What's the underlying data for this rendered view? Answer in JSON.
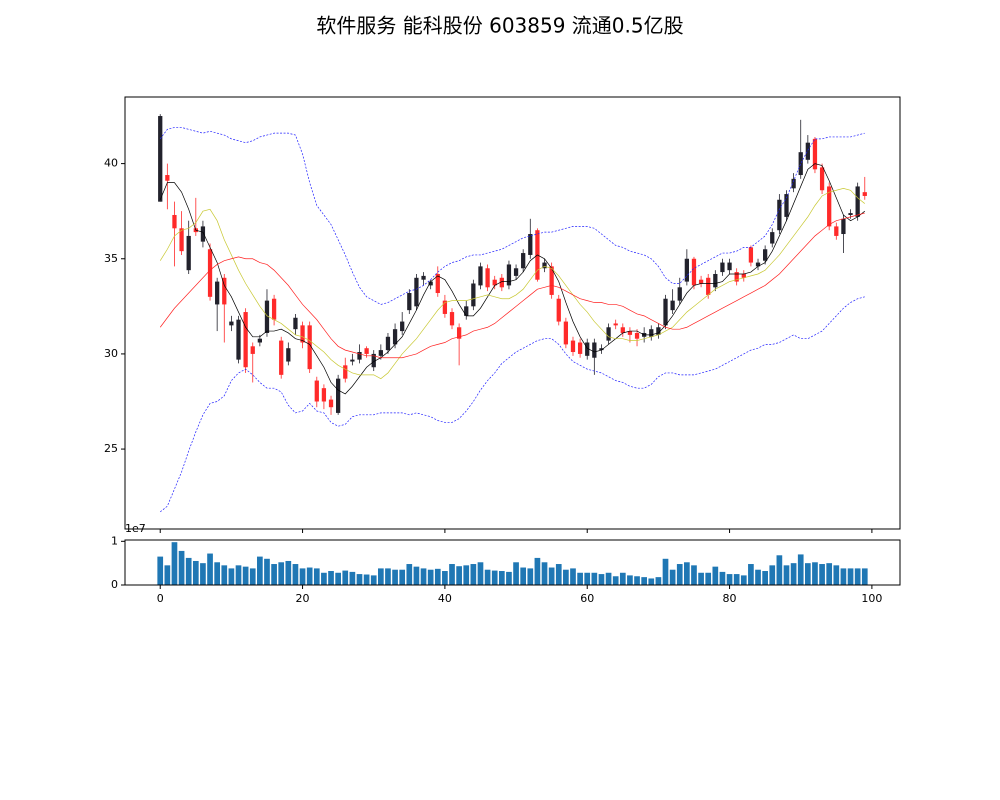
{
  "chart_data": [
    {
      "type": "candlestick",
      "title": "软件服务 能科股份 603859 流通0.5亿股",
      "x": [
        0,
        1,
        2,
        3,
        4,
        5,
        6,
        7,
        8,
        9,
        10,
        11,
        12,
        13,
        14,
        15,
        16,
        17,
        18,
        19,
        20,
        21,
        22,
        23,
        24,
        25,
        26,
        27,
        28,
        29,
        30,
        31,
        32,
        33,
        34,
        35,
        36,
        37,
        38,
        39,
        40,
        41,
        42,
        43,
        44,
        45,
        46,
        47,
        48,
        49,
        50,
        51,
        52,
        53,
        54,
        55,
        56,
        57,
        58,
        59,
        60,
        61,
        62,
        63,
        64,
        65,
        66,
        67,
        68,
        69,
        70,
        71,
        72,
        73,
        74,
        75,
        76,
        77,
        78,
        79,
        80,
        81,
        82,
        83,
        84,
        85,
        86,
        87,
        88,
        89,
        90,
        91,
        92,
        93,
        94,
        95,
        96,
        97,
        98,
        99
      ],
      "open": [
        38.0,
        39.4,
        37.3,
        36.6,
        34.4,
        36.6,
        35.9,
        35.5,
        32.6,
        34.0,
        31.5,
        29.7,
        32.2,
        30.4,
        30.6,
        31.1,
        32.9,
        30.7,
        29.6,
        31.3,
        31.5,
        31.5,
        28.6,
        28.2,
        27.6,
        26.9,
        29.4,
        29.6,
        29.7,
        30.3,
        29.3,
        29.9,
        30.2,
        30.5,
        31.2,
        32.3,
        32.5,
        33.9,
        33.6,
        34.2,
        32.8,
        32.2,
        31.4,
        32.0,
        32.5,
        33.6,
        34.5,
        33.9,
        34.0,
        33.6,
        34.1,
        34.5,
        35.2,
        36.5,
        34.5,
        34.6,
        32.9,
        31.7,
        30.7,
        30.6,
        29.9,
        29.8,
        30.2,
        30.7,
        31.6,
        31.4,
        31.2,
        31.1,
        30.9,
        30.9,
        31.0,
        31.5,
        32.3,
        32.8,
        33.8,
        35.0,
        33.9,
        34.0,
        33.5,
        34.3,
        34.4,
        34.3,
        34.2,
        35.6,
        34.6,
        34.9,
        35.8,
        36.5,
        37.2,
        38.7,
        39.4,
        40.2,
        41.3,
        39.8,
        38.8,
        36.7,
        36.3,
        37.3,
        37.2,
        38.5
      ],
      "high": [
        42.6,
        40.0,
        38.0,
        37.5,
        37.0,
        38.2,
        37.0,
        35.8,
        34.0,
        34.2,
        32.0,
        32.0,
        32.4,
        30.6,
        31.0,
        33.4,
        33.1,
        30.9,
        30.6,
        32.1,
        31.7,
        31.7,
        28.8,
        28.4,
        27.8,
        28.9,
        29.8,
        30.0,
        30.5,
        30.4,
        30.2,
        30.5,
        31.1,
        31.6,
        32.2,
        33.4,
        34.2,
        34.3,
        33.9,
        34.6,
        33.1,
        32.4,
        31.6,
        32.8,
        33.9,
        34.8,
        34.7,
        34.1,
        34.2,
        34.9,
        34.7,
        35.5,
        37.1,
        36.6,
        35.0,
        34.8,
        33.1,
        31.9,
        30.9,
        30.8,
        30.8,
        30.8,
        30.5,
        31.6,
        31.8,
        31.6,
        31.4,
        31.3,
        31.4,
        31.5,
        31.6,
        33.1,
        33.4,
        34.0,
        35.5,
        35.1,
        34.1,
        34.2,
        34.4,
        35.0,
        35.0,
        34.5,
        34.4,
        35.7,
        35.0,
        35.7,
        36.6,
        38.4,
        38.6,
        39.5,
        42.3,
        41.5,
        41.4,
        40.0,
        39.0,
        36.9,
        37.3,
        37.6,
        39.0,
        39.3
      ],
      "low": [
        38.0,
        37.6,
        34.6,
        35.2,
        34.2,
        36.2,
        35.6,
        32.8,
        31.2,
        30.6,
        31.2,
        29.5,
        29.0,
        28.5,
        30.4,
        30.9,
        31.5,
        28.7,
        29.4,
        31.0,
        30.3,
        29.0,
        27.2,
        27.1,
        26.8,
        26.8,
        28.5,
        29.4,
        29.5,
        29.8,
        29.1,
        29.7,
        30.0,
        30.3,
        31.0,
        32.1,
        32.3,
        33.6,
        33.4,
        33.0,
        31.9,
        31.3,
        29.4,
        31.8,
        32.3,
        33.4,
        33.3,
        33.4,
        33.3,
        33.4,
        33.9,
        34.3,
        35.0,
        33.8,
        34.3,
        32.9,
        31.5,
        30.3,
        29.9,
        29.8,
        29.7,
        28.9,
        30.0,
        30.5,
        31.3,
        30.9,
        30.6,
        30.4,
        30.6,
        30.7,
        30.8,
        31.3,
        32.1,
        32.6,
        33.6,
        33.4,
        33.5,
        32.9,
        33.3,
        34.1,
        34.2,
        33.6,
        33.8,
        34.6,
        34.4,
        34.7,
        35.6,
        36.3,
        37.0,
        38.5,
        39.2,
        40.0,
        39.5,
        38.4,
        36.5,
        36.0,
        35.3,
        37.1,
        37.0,
        38.1
      ],
      "close": [
        42.5,
        39.1,
        36.6,
        35.4,
        36.2,
        36.4,
        36.7,
        33.0,
        33.8,
        32.6,
        31.7,
        31.8,
        29.3,
        30.0,
        30.8,
        32.8,
        31.8,
        28.9,
        30.3,
        31.9,
        30.6,
        29.2,
        27.5,
        27.5,
        27.2,
        28.7,
        28.7,
        29.7,
        30.1,
        30.0,
        30.0,
        30.2,
        30.9,
        31.3,
        31.7,
        33.2,
        34.0,
        34.1,
        33.8,
        33.2,
        32.1,
        31.5,
        30.8,
        32.5,
        33.7,
        34.6,
        33.5,
        33.6,
        33.5,
        34.7,
        34.5,
        35.3,
        36.3,
        33.9,
        34.8,
        33.1,
        31.7,
        30.5,
        30.1,
        30.0,
        30.6,
        30.6,
        30.3,
        31.4,
        31.5,
        31.1,
        31.0,
        30.8,
        31.1,
        31.3,
        31.4,
        32.9,
        32.8,
        33.5,
        35.0,
        33.6,
        33.7,
        33.1,
        34.2,
        34.8,
        34.8,
        33.8,
        34.0,
        34.8,
        34.8,
        35.5,
        36.4,
        38.1,
        38.4,
        39.2,
        40.6,
        41.1,
        39.7,
        38.6,
        36.7,
        36.2,
        37.1,
        37.4,
        38.8,
        38.3
      ],
      "up_color": "#22222c",
      "down_color": "#ff2a2a",
      "lines": [
        {
          "color": "#000000",
          "linestyle": "solid",
          "values": [
            38.1,
            39.0,
            39.0,
            38.5,
            37.6,
            36.5,
            36.4,
            35.6,
            34.8,
            33.6,
            33.0,
            32.2,
            31.4,
            30.9,
            30.9,
            31.2,
            31.2,
            31.3,
            31.1,
            30.8,
            30.7,
            30.5,
            29.9,
            29.3,
            28.5,
            28.1,
            27.9,
            28.3,
            28.8,
            29.3,
            29.6,
            29.8,
            30.1,
            30.5,
            30.9,
            31.6,
            32.3,
            33.1,
            33.8,
            34.1,
            33.9,
            33.3,
            32.6,
            32.0,
            32.0,
            32.4,
            33.0,
            33.6,
            33.8,
            33.8,
            33.9,
            34.3,
            34.9,
            35.2,
            35.0,
            34.5,
            33.8,
            32.7,
            31.7,
            30.9,
            30.3,
            30.1,
            30.2,
            30.5,
            30.8,
            31.1,
            31.2,
            31.2,
            31.0,
            31.0,
            31.1,
            31.5,
            32.0,
            32.6,
            33.2,
            33.6,
            33.7,
            33.7,
            33.7,
            33.8,
            34.2,
            34.2,
            34.2,
            34.3,
            34.6,
            34.8,
            35.4,
            36.2,
            37.0,
            37.9,
            38.8,
            39.7,
            40.0,
            39.9,
            39.1,
            38.2,
            37.3,
            37.0,
            37.2,
            37.5
          ]
        },
        {
          "color": "#c8c832",
          "linestyle": "solid",
          "values": [
            34.9,
            35.5,
            36.2,
            36.5,
            36.6,
            36.9,
            37.5,
            37.6,
            37.0,
            36.0,
            35.2,
            34.4,
            33.7,
            33.1,
            32.5,
            32.0,
            31.8,
            31.6,
            31.3,
            31.0,
            30.9,
            30.7,
            30.4,
            30.1,
            29.7,
            29.4,
            29.2,
            29.0,
            28.9,
            28.9,
            28.9,
            28.7,
            29.0,
            29.5,
            30.0,
            30.4,
            30.8,
            31.3,
            31.8,
            32.3,
            32.7,
            32.8,
            32.8,
            32.8,
            32.9,
            33.0,
            33.1,
            33.0,
            32.9,
            32.9,
            33.1,
            33.4,
            33.9,
            34.4,
            34.6,
            34.5,
            34.1,
            33.6,
            33.1,
            32.6,
            32.2,
            31.7,
            31.3,
            30.9,
            30.8,
            30.8,
            30.7,
            30.7,
            30.8,
            30.9,
            31.0,
            31.2,
            31.4,
            31.8,
            32.2,
            32.5,
            32.8,
            33.1,
            33.4,
            33.6,
            33.8,
            33.9,
            34.0,
            34.1,
            34.2,
            34.4,
            34.8,
            35.2,
            35.7,
            36.2,
            36.7,
            37.2,
            37.8,
            38.3,
            38.5,
            38.6,
            38.7,
            38.6,
            38.2,
            37.9
          ]
        },
        {
          "color": "#ff2020",
          "linestyle": "solid",
          "values": [
            31.4,
            31.9,
            32.4,
            32.8,
            33.2,
            33.6,
            34.0,
            34.4,
            34.7,
            34.9,
            35.0,
            35.1,
            35.0,
            35.0,
            34.8,
            34.7,
            34.4,
            34.0,
            33.6,
            33.1,
            32.6,
            32.2,
            31.8,
            31.3,
            30.8,
            30.4,
            30.2,
            30.1,
            30.0,
            29.9,
            29.9,
            29.8,
            29.8,
            29.8,
            29.8,
            29.9,
            30.0,
            30.2,
            30.4,
            30.5,
            30.6,
            30.8,
            30.9,
            31.0,
            31.2,
            31.3,
            31.4,
            31.6,
            31.9,
            32.2,
            32.5,
            32.8,
            33.1,
            33.4,
            33.5,
            33.6,
            33.5,
            33.3,
            33.1,
            32.9,
            32.8,
            32.7,
            32.7,
            32.6,
            32.6,
            32.5,
            32.3,
            32.1,
            32.0,
            31.8,
            31.6,
            31.4,
            31.3,
            31.3,
            31.4,
            31.6,
            31.8,
            32.0,
            32.2,
            32.4,
            32.6,
            32.8,
            33.0,
            33.2,
            33.4,
            33.6,
            33.9,
            34.2,
            34.6,
            35.0,
            35.4,
            35.8,
            36.2,
            36.5,
            36.8,
            37.0,
            37.1,
            37.2,
            37.3,
            37.4
          ]
        },
        {
          "color": "#2020ff",
          "linestyle": "dashed",
          "values": [
            41.3,
            41.8,
            41.9,
            41.9,
            41.8,
            41.7,
            41.6,
            41.7,
            41.6,
            41.5,
            41.3,
            41.2,
            41.1,
            41.2,
            41.4,
            41.5,
            41.6,
            41.6,
            41.6,
            41.5,
            40.5,
            39.0,
            37.8,
            37.3,
            36.8,
            36.0,
            35.2,
            34.3,
            33.5,
            33.0,
            32.8,
            32.6,
            32.7,
            32.9,
            33.1,
            33.3,
            33.4,
            33.6,
            33.9,
            34.3,
            34.6,
            34.8,
            34.9,
            35.1,
            35.2,
            35.2,
            35.3,
            35.4,
            35.5,
            35.7,
            35.9,
            36.1,
            36.2,
            36.3,
            36.4,
            36.4,
            36.5,
            36.6,
            36.7,
            36.7,
            36.7,
            36.6,
            36.3,
            36.0,
            35.7,
            35.6,
            35.4,
            35.3,
            35.2,
            35.0,
            34.6,
            34.0,
            33.7,
            33.7,
            34.1,
            34.5,
            34.7,
            34.9,
            35.1,
            35.3,
            35.3,
            35.4,
            35.6,
            35.6,
            35.9,
            36.2,
            36.8,
            37.6,
            38.2,
            39.1,
            40.0,
            40.7,
            41.3,
            41.3,
            41.4,
            41.4,
            41.4,
            41.4,
            41.5,
            41.6
          ]
        },
        {
          "color": "#2020ff",
          "linestyle": "dashed",
          "values": [
            21.7,
            22.0,
            22.9,
            23.8,
            24.9,
            25.9,
            26.8,
            27.4,
            27.5,
            27.8,
            28.6,
            29.0,
            29.2,
            28.9,
            28.5,
            28.2,
            28.2,
            28.0,
            27.3,
            26.9,
            27.0,
            27.4,
            27.0,
            26.9,
            26.4,
            26.2,
            26.3,
            26.7,
            26.8,
            26.8,
            26.8,
            26.9,
            26.9,
            26.9,
            26.9,
            26.8,
            26.9,
            26.8,
            26.7,
            26.5,
            26.4,
            26.4,
            26.6,
            27.0,
            27.5,
            28.1,
            28.6,
            29.0,
            29.5,
            29.8,
            30.1,
            30.3,
            30.5,
            30.7,
            30.8,
            30.8,
            30.5,
            30.0,
            29.6,
            29.4,
            29.2,
            29.1,
            29.0,
            28.8,
            28.6,
            28.5,
            28.3,
            28.2,
            28.2,
            28.4,
            28.8,
            29.0,
            29.0,
            28.9,
            28.9,
            28.9,
            29.0,
            29.1,
            29.2,
            29.4,
            29.6,
            29.8,
            30.0,
            30.2,
            30.3,
            30.5,
            30.5,
            30.6,
            30.8,
            31.0,
            30.8,
            30.8,
            31.0,
            31.2,
            31.6,
            32.0,
            32.4,
            32.7,
            32.9,
            33.0
          ]
        }
      ],
      "xlim": [
        -4.95,
        103.95
      ],
      "xticks": [
        0,
        20,
        40,
        60,
        80,
        100
      ],
      "ylim": [
        20.8,
        43.5
      ],
      "yticks": [
        25,
        30,
        35,
        40
      ]
    },
    {
      "type": "bar",
      "offset_label": "1e7",
      "color": "#1f77b4",
      "x": [
        0,
        1,
        2,
        3,
        4,
        5,
        6,
        7,
        8,
        9,
        10,
        11,
        12,
        13,
        14,
        15,
        16,
        17,
        18,
        19,
        20,
        21,
        22,
        23,
        24,
        25,
        26,
        27,
        28,
        29,
        30,
        31,
        32,
        33,
        34,
        35,
        36,
        37,
        38,
        39,
        40,
        41,
        42,
        43,
        44,
        45,
        46,
        47,
        48,
        49,
        50,
        51,
        52,
        53,
        54,
        55,
        56,
        57,
        58,
        59,
        60,
        61,
        62,
        63,
        64,
        65,
        66,
        67,
        68,
        69,
        70,
        71,
        72,
        73,
        74,
        75,
        76,
        77,
        78,
        79,
        80,
        81,
        82,
        83,
        84,
        85,
        86,
        87,
        88,
        89,
        90,
        91,
        92,
        93,
        94,
        95,
        96,
        97,
        98,
        99
      ],
      "values": [
        0.65,
        0.45,
        0.98,
        0.78,
        0.62,
        0.55,
        0.5,
        0.72,
        0.52,
        0.45,
        0.38,
        0.45,
        0.42,
        0.38,
        0.65,
        0.6,
        0.48,
        0.52,
        0.55,
        0.48,
        0.38,
        0.4,
        0.38,
        0.28,
        0.32,
        0.28,
        0.33,
        0.3,
        0.25,
        0.24,
        0.22,
        0.38,
        0.38,
        0.35,
        0.35,
        0.48,
        0.42,
        0.38,
        0.35,
        0.37,
        0.32,
        0.48,
        0.43,
        0.45,
        0.48,
        0.52,
        0.35,
        0.33,
        0.32,
        0.3,
        0.52,
        0.4,
        0.38,
        0.62,
        0.52,
        0.4,
        0.48,
        0.35,
        0.38,
        0.28,
        0.28,
        0.28,
        0.25,
        0.28,
        0.2,
        0.28,
        0.22,
        0.2,
        0.18,
        0.15,
        0.18,
        0.6,
        0.35,
        0.48,
        0.52,
        0.45,
        0.28,
        0.28,
        0.42,
        0.3,
        0.25,
        0.25,
        0.22,
        0.48,
        0.35,
        0.32,
        0.45,
        0.68,
        0.45,
        0.5,
        0.7,
        0.5,
        0.52,
        0.48,
        0.5,
        0.45,
        0.38,
        0.38,
        0.38,
        0.38
      ],
      "xlim": [
        -4.95,
        103.95
      ],
      "xticks": [
        0,
        20,
        40,
        60,
        80,
        100
      ],
      "ylim": [
        0,
        1.03
      ],
      "yticks": [
        0,
        1
      ]
    }
  ]
}
